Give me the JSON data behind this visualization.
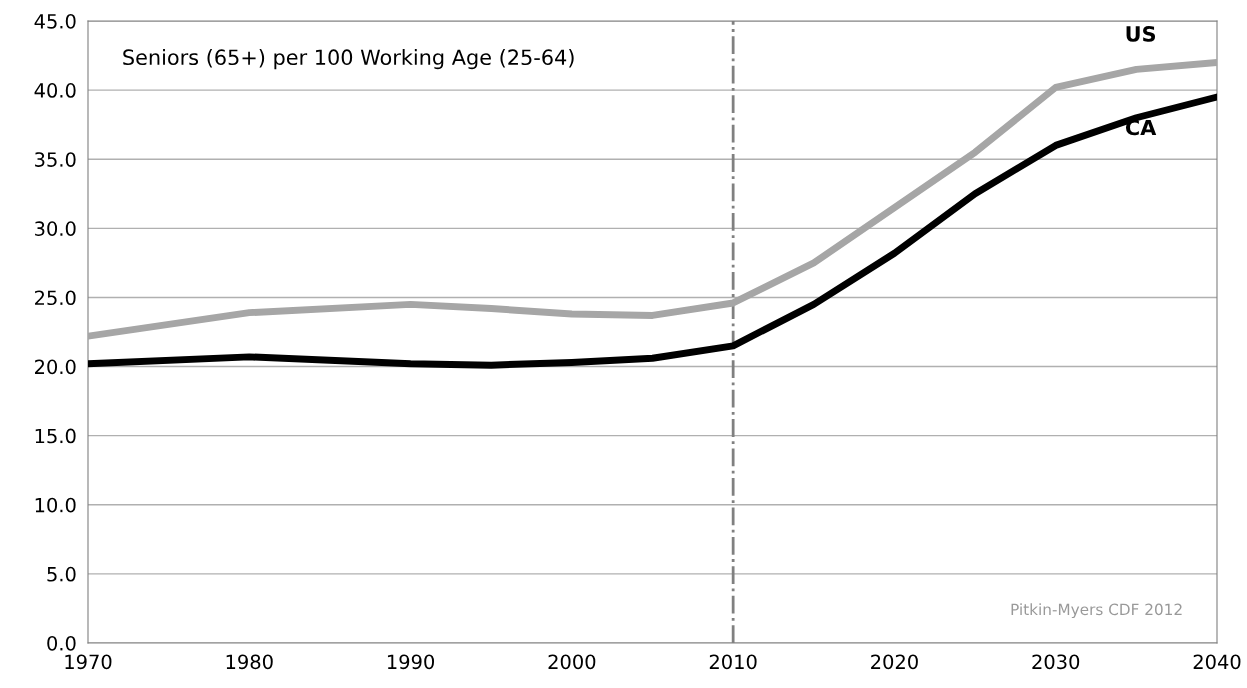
{
  "chart_data": {
    "type": "line",
    "title": "Seniors (65+) per 100 Working Age (25-64)",
    "x": [
      1970,
      1980,
      1990,
      1995,
      2000,
      2005,
      2010,
      2015,
      2020,
      2025,
      2030,
      2035,
      2040
    ],
    "series": [
      {
        "name": "US",
        "color": "#a6a6a6",
        "values": [
          22.2,
          23.9,
          24.5,
          24.2,
          23.8,
          23.7,
          24.6,
          27.5,
          31.5,
          35.5,
          40.2,
          41.5,
          42.0
        ]
      },
      {
        "name": "CA",
        "color": "#000000",
        "values": [
          20.2,
          20.7,
          20.2,
          20.1,
          20.3,
          20.6,
          21.5,
          24.5,
          28.2,
          32.5,
          36.0,
          38.0,
          39.5
        ]
      }
    ],
    "xlim": [
      1970,
      2040
    ],
    "xticks": [
      1970,
      1980,
      1990,
      2000,
      2010,
      2020,
      2030,
      2040
    ],
    "ylim": [
      0,
      45
    ],
    "yticks": [
      {
        "value": 0,
        "label": "0.0"
      },
      {
        "value": 5,
        "label": "5.0"
      },
      {
        "value": 10,
        "label": "10.0"
      },
      {
        "value": 15,
        "label": "15.0"
      },
      {
        "value": 20,
        "label": "20.0"
      },
      {
        "value": 25,
        "label": "25.0"
      },
      {
        "value": 30,
        "label": "30.0"
      },
      {
        "value": 35,
        "label": "35.0"
      },
      {
        "value": 40,
        "label": "40.0"
      },
      {
        "value": 45,
        "label": "45.0"
      }
    ],
    "grid": "y",
    "legend": false,
    "marker": "none",
    "line_style": "solid",
    "ref_lines": [
      {
        "axis": "x",
        "value": 2010,
        "color": "#808080",
        "line_style": "dashdot"
      }
    ],
    "annotations": [
      "Pitkin-Myers CDF 2012"
    ]
  }
}
